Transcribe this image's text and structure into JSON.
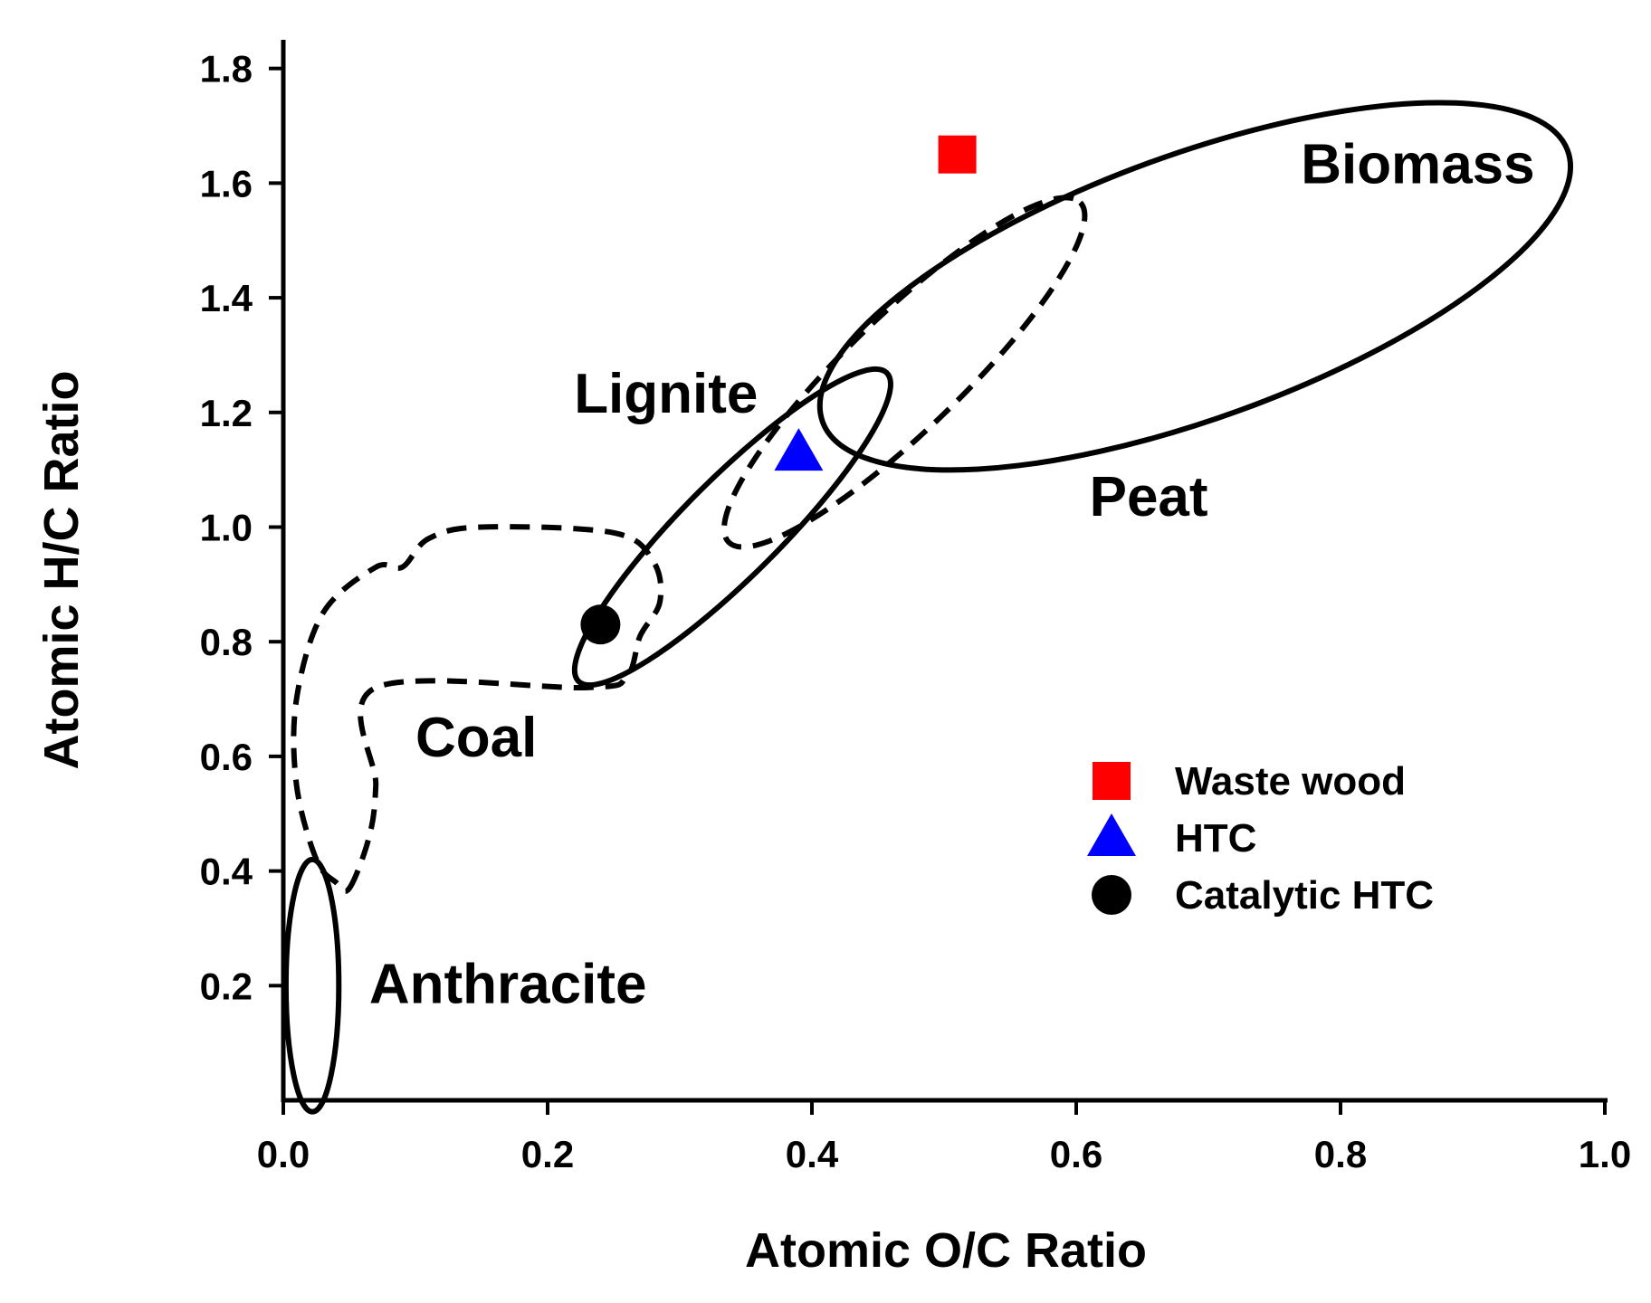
{
  "chart_data": {
    "type": "scatter",
    "title": "",
    "xlabel": "Atomic O/C Ratio",
    "ylabel": "Atomic H/C Ratio",
    "xlim": [
      0.0,
      1.0
    ],
    "ylim": [
      0.0,
      1.85
    ],
    "x_ticks": [
      "0.0",
      "0.2",
      "0.4",
      "0.6",
      "0.8",
      "1.0"
    ],
    "y_ticks": [
      "0.2",
      "0.4",
      "0.6",
      "0.8",
      "1.0",
      "1.2",
      "1.4",
      "1.6",
      "1.8"
    ],
    "grid": false,
    "legend_position": "bottom-right",
    "series": [
      {
        "name": "Waste wood",
        "marker": "square",
        "color": "#ff0000",
        "points": [
          {
            "x": 0.51,
            "y": 1.65
          }
        ]
      },
      {
        "name": "HTC",
        "marker": "triangle",
        "color": "#0000ff",
        "points": [
          {
            "x": 0.39,
            "y": 1.13
          }
        ]
      },
      {
        "name": "Catalytic HTC",
        "marker": "circle",
        "color": "#000000",
        "points": [
          {
            "x": 0.24,
            "y": 0.83
          }
        ]
      }
    ],
    "regions": [
      {
        "name": "Biomass",
        "style": "solid",
        "shape": "ellipse",
        "center": [
          0.69,
          1.42
        ],
        "semi_axes": [
          0.3,
          0.23
        ],
        "rotation": -20
      },
      {
        "name": "Peat",
        "style": "dashed",
        "shape": "ellipse",
        "center": [
          0.47,
          1.27
        ],
        "semi_axes": [
          0.185,
          0.1
        ],
        "rotation": -44
      },
      {
        "name": "Lignite",
        "style": "solid",
        "shape": "ellipse",
        "center": [
          0.34,
          1.0
        ],
        "semi_axes": [
          0.165,
          0.085
        ],
        "rotation": -45
      },
      {
        "name": "Coal",
        "style": "dashed",
        "shape": "polygon",
        "points": [
          [
            0.05,
            0.37
          ],
          [
            0.065,
            0.46
          ],
          [
            0.07,
            0.55
          ],
          [
            0.07,
            0.72
          ],
          [
            0.23,
            0.72
          ],
          [
            0.26,
            0.74
          ],
          [
            0.27,
            0.81
          ],
          [
            0.285,
            0.87
          ],
          [
            0.28,
            0.94
          ],
          [
            0.25,
            0.99
          ],
          [
            0.15,
            1.0
          ],
          [
            0.11,
            0.98
          ],
          [
            0.09,
            0.93
          ],
          [
            0.07,
            0.93
          ],
          [
            0.03,
            0.85
          ],
          [
            0.01,
            0.7
          ],
          [
            0.01,
            0.55
          ],
          [
            0.025,
            0.42
          ],
          [
            0.04,
            0.38
          ]
        ]
      },
      {
        "name": "Anthracite",
        "style": "solid",
        "shape": "ellipse",
        "center": [
          0.022,
          0.2
        ],
        "semi_axes": [
          0.02,
          0.22
        ],
        "rotation": 0
      }
    ],
    "region_labels": [
      {
        "text": "Biomass",
        "x": 0.77,
        "y": 1.6
      },
      {
        "text": "Peat",
        "x": 0.61,
        "y": 1.02
      },
      {
        "text": "Lignite",
        "x": 0.22,
        "y": 1.2
      },
      {
        "text": "Coal",
        "x": 0.1,
        "y": 0.6
      },
      {
        "text": "Anthracite",
        "x": 0.065,
        "y": 0.17
      }
    ]
  }
}
